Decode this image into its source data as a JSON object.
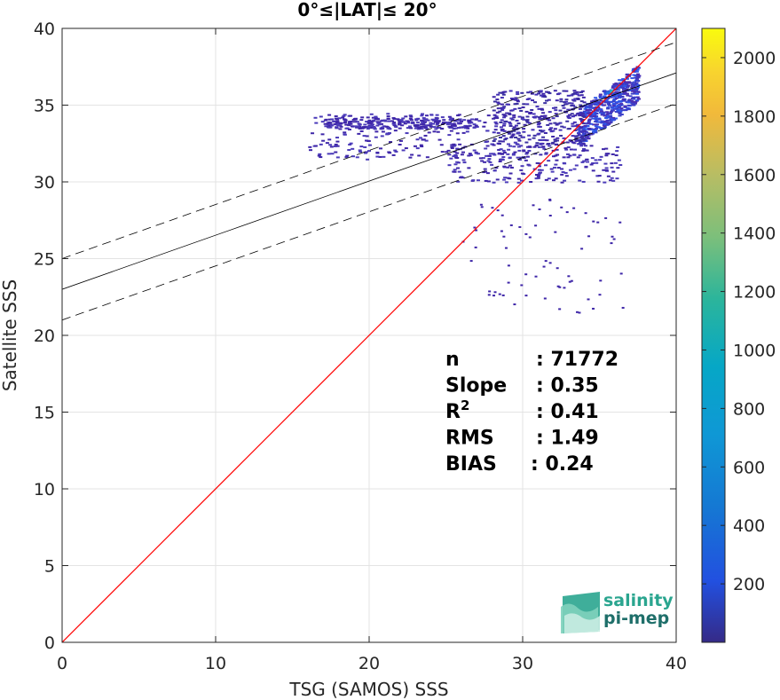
{
  "chart_data": {
    "type": "heatmap",
    "title": "0°≤|LAT|≤ 20°",
    "xlabel": "TSG (SAMOS) SSS",
    "ylabel": "Satellite SSS",
    "xlim": [
      0,
      40
    ],
    "ylim": [
      0,
      40
    ],
    "x_ticks": [
      "0",
      "10",
      "20",
      "30",
      "40"
    ],
    "y_ticks": [
      "0",
      "5",
      "10",
      "15",
      "20",
      "25",
      "30",
      "35",
      "40"
    ],
    "grid": true,
    "colorbar": {
      "range": [
        0,
        2100
      ],
      "ticks": [
        "200",
        "400",
        "600",
        "800",
        "1000",
        "1200",
        "1400",
        "1600",
        "1800",
        "2000"
      ],
      "colormap": "parula"
    },
    "lines": [
      {
        "kind": "one-to-one",
        "color": "#ff0000",
        "x": [
          0,
          40
        ],
        "y": [
          0,
          40
        ]
      },
      {
        "kind": "regression",
        "color": "#000000",
        "x": [
          0,
          40
        ],
        "y": [
          23.0,
          37.1
        ]
      },
      {
        "kind": "regression-upper",
        "color": "#000000",
        "dash": true,
        "x": [
          0,
          40
        ],
        "y": [
          25.0,
          39.1
        ]
      },
      {
        "kind": "regression-lower",
        "color": "#000000",
        "dash": true,
        "x": [
          0,
          40
        ],
        "y": [
          21.0,
          35.1
        ]
      }
    ],
    "density_regions": [
      {
        "x": [
          33.5,
          37.5
        ],
        "y": [
          33.5,
          37.5
        ],
        "level": "high"
      },
      {
        "x": [
          28.0,
          34.0
        ],
        "y": [
          32.5,
          36.0
        ],
        "level": "medium"
      },
      {
        "x": [
          16.0,
          30.0
        ],
        "y": [
          31.5,
          34.5
        ],
        "level": "low"
      },
      {
        "x": [
          17.0,
          27.0
        ],
        "y": [
          33.5,
          34.2
        ],
        "level": "low"
      },
      {
        "x": [
          25.0,
          36.5
        ],
        "y": [
          30.0,
          32.5
        ],
        "level": "low"
      },
      {
        "x": [
          26.0,
          36.5
        ],
        "y": [
          21.5,
          29.0
        ],
        "level": "sparse"
      }
    ],
    "peak": {
      "x": 35.8,
      "y": 35.9
    },
    "stats": [
      {
        "label": "n",
        "value": ": 71772"
      },
      {
        "label": "Slope",
        "value": ": 0.35"
      },
      {
        "label": "R",
        "sup": "2",
        "value": ": 0.41"
      },
      {
        "label": "RMS",
        "value": ": 1.49"
      },
      {
        "label": "BIAS",
        "value": ": 0.24"
      }
    ]
  },
  "logo": {
    "line1": "salinity",
    "line2": "pi-mep"
  },
  "colors": {
    "one_to_one": "#ff0000",
    "logo_teal": "#2aa58f",
    "logo_dark": "#1f6f6a",
    "scatter_low": "#3e26a8"
  }
}
